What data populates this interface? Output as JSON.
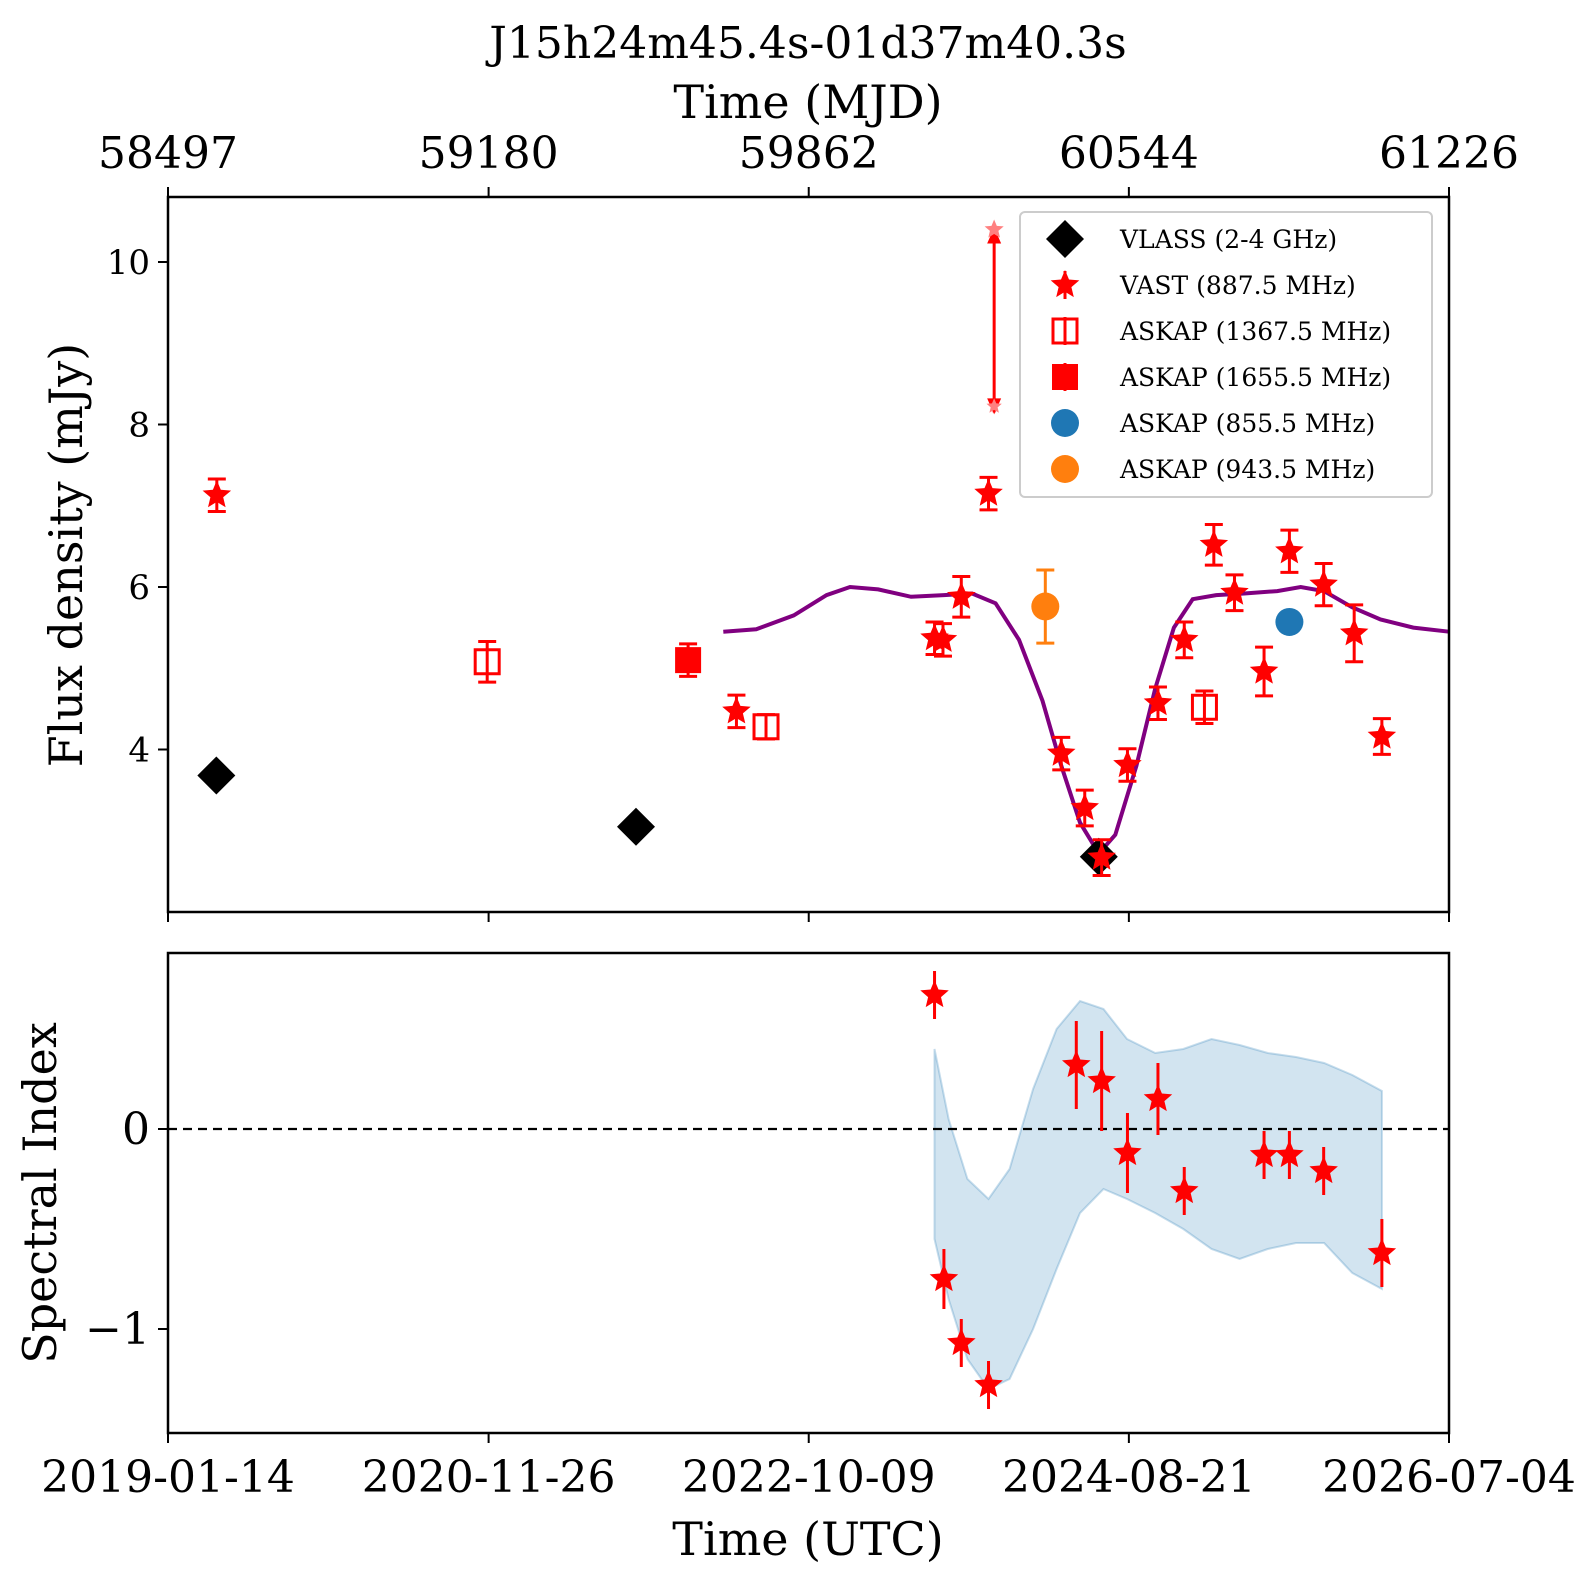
{
  "figure": {
    "title": "J15h24m45.4s-01d37m40.3s",
    "top_axis_label": "Time (MJD)",
    "bottom_axis_label": "Time (UTC)",
    "top_ylabel": "Flux density (mJy)",
    "bottom_ylabel": "Spectral Index"
  },
  "chart_data": [
    {
      "type": "scatter",
      "panel": "top",
      "title": "J15h24m45.4s-01d37m40.3s",
      "xlabel": "Time (UTC)",
      "xlabel_top": "Time (MJD)",
      "ylabel": "Flux density (mJy)",
      "xlim_mjd": [
        58497,
        61226
      ],
      "ylim": [
        2.0,
        10.8
      ],
      "x_ticks_mjd": [
        58497,
        59180,
        59862,
        60544,
        61226
      ],
      "x_tick_labels_mjd": [
        "58497",
        "59180",
        "59862",
        "60544",
        "61226"
      ],
      "y_ticks": [
        4,
        6,
        8,
        10
      ],
      "y_tick_labels": [
        "4",
        "6",
        "8",
        "10"
      ],
      "legend_position": "top-right",
      "legend": [
        {
          "label": "VLASS (2-4 GHz)",
          "marker": "diamond",
          "color": "#000000"
        },
        {
          "label": "VAST (887.5 MHz)",
          "marker": "star",
          "color": "#ff0000"
        },
        {
          "label": "ASKAP (1367.5 MHz)",
          "marker": "open-square",
          "color": "#ff0000"
        },
        {
          "label": "ASKAP (1655.5 MHz)",
          "marker": "square",
          "color": "#ff0000"
        },
        {
          "label": "ASKAP (855.5 MHz)",
          "marker": "circle",
          "color": "#1f77b4"
        },
        {
          "label": "ASKAP (943.5 MHz)",
          "marker": "circle",
          "color": "#ff7f0e"
        }
      ],
      "series": [
        {
          "name": "VLASS (2-4 GHz)",
          "marker": "diamond",
          "color": "#000000",
          "points": [
            [
              58600,
              3.68,
              0.06
            ],
            [
              59494,
              3.05,
              0.06
            ],
            [
              60480,
              2.68,
              0.06
            ]
          ]
        },
        {
          "name": "VAST (887.5 MHz)",
          "marker": "star",
          "color": "#ff0000",
          "points": [
            [
              58601,
              7.13,
              0.2
            ],
            [
              59708,
              4.47,
              0.2
            ],
            [
              60130,
              5.37,
              0.2
            ],
            [
              60148,
              5.35,
              0.2
            ],
            [
              60187,
              5.88,
              0.25
            ],
            [
              60245,
              7.15,
              0.2
            ],
            [
              60400,
              3.95,
              0.2
            ],
            [
              60450,
              3.28,
              0.22
            ],
            [
              60486,
              2.67,
              0.22
            ],
            [
              60541,
              3.81,
              0.2
            ],
            [
              60606,
              4.57,
              0.2
            ],
            [
              60662,
              5.35,
              0.22
            ],
            [
              60725,
              6.52,
              0.25
            ],
            [
              60769,
              5.93,
              0.22
            ],
            [
              60832,
              4.96,
              0.3
            ],
            [
              60886,
              6.44,
              0.26
            ],
            [
              60959,
              6.03,
              0.26
            ],
            [
              61024,
              5.43,
              0.35
            ],
            [
              61083,
              4.16,
              0.22
            ]
          ]
        },
        {
          "name": "VAST (887.5 MHz) upper limit",
          "marker": "arrow",
          "color": "#ff0000",
          "points": [
            [
              60257,
              10.4,
              8.15
            ]
          ]
        },
        {
          "name": "ASKAP (1367.5 MHz)",
          "marker": "open-square",
          "color": "#ff0000",
          "points": [
            [
              59177,
              5.08,
              0.25
            ],
            [
              59771,
              4.28,
              0.15
            ],
            [
              60705,
              4.52,
              0.2
            ]
          ]
        },
        {
          "name": "ASKAP (1655.5 MHz)",
          "marker": "square",
          "color": "#ff0000",
          "points": [
            [
              59605,
              5.1,
              0.2
            ]
          ]
        },
        {
          "name": "ASKAP (855.5 MHz)",
          "marker": "circle",
          "color": "#1f77b4",
          "points": [
            [
              60886,
              5.57,
              0.05
            ]
          ]
        },
        {
          "name": "ASKAP (943.5 MHz)",
          "marker": "circle",
          "color": "#ff7f0e",
          "points": [
            [
              60366,
              5.76,
              0.45
            ]
          ]
        },
        {
          "name": "model",
          "marker": "line",
          "color": "#800080",
          "points": [
            [
              59680,
              5.45
            ],
            [
              59750,
              5.48
            ],
            [
              59830,
              5.65
            ],
            [
              59900,
              5.9
            ],
            [
              59950,
              6.0
            ],
            [
              60010,
              5.97
            ],
            [
              60080,
              5.88
            ],
            [
              60150,
              5.9
            ],
            [
              60210,
              5.92
            ],
            [
              60260,
              5.8
            ],
            [
              60310,
              5.35
            ],
            [
              60360,
              4.6
            ],
            [
              60400,
              3.8
            ],
            [
              60440,
              3.1
            ],
            [
              60480,
              2.72
            ],
            [
              60515,
              2.95
            ],
            [
              60560,
              3.8
            ],
            [
              60600,
              4.75
            ],
            [
              60640,
              5.5
            ],
            [
              60680,
              5.85
            ],
            [
              60730,
              5.9
            ],
            [
              60790,
              5.92
            ],
            [
              60860,
              5.95
            ],
            [
              60910,
              6.0
            ],
            [
              60960,
              5.95
            ],
            [
              61020,
              5.75
            ],
            [
              61080,
              5.6
            ],
            [
              61150,
              5.5
            ],
            [
              61226,
              5.45
            ]
          ]
        }
      ]
    },
    {
      "type": "scatter",
      "panel": "bottom",
      "xlabel": "Time (UTC)",
      "ylabel": "Spectral Index",
      "xlim_mjd": [
        58497,
        61226
      ],
      "ylim": [
        -1.52,
        0.88
      ],
      "x_ticks_mjd": [
        58497,
        59180,
        59862,
        60544,
        61226
      ],
      "x_tick_labels_utc": [
        "2019-01-14",
        "2020-11-26",
        "2022-10-09",
        "2024-08-21",
        "2026-07-04"
      ],
      "y_ticks": [
        0,
        -1
      ],
      "y_tick_labels": [
        "0",
        "−1"
      ],
      "reference_line": 0,
      "series": [
        {
          "name": "spectral index",
          "marker": "star",
          "color": "#ff0000",
          "points": [
            [
              60130,
              0.67,
              0.12
            ],
            [
              60150,
              -0.75,
              0.15
            ],
            [
              60187,
              -1.07,
              0.12
            ],
            [
              60245,
              -1.28,
              0.12
            ],
            [
              60432,
              0.32,
              0.22
            ],
            [
              60486,
              0.24,
              0.25
            ],
            [
              60541,
              -0.12,
              0.2
            ],
            [
              60606,
              0.15,
              0.18
            ],
            [
              60662,
              -0.31,
              0.12
            ],
            [
              60832,
              -0.13,
              0.12
            ],
            [
              60886,
              -0.13,
              0.12
            ],
            [
              60959,
              -0.21,
              0.12
            ],
            [
              61083,
              -0.62,
              0.17
            ]
          ]
        },
        {
          "name": "band",
          "marker": "fill",
          "color": "#1f77b4",
          "upper": [
            [
              60130,
              0.4
            ],
            [
              60160,
              0.05
            ],
            [
              60200,
              -0.25
            ],
            [
              60245,
              -0.35
            ],
            [
              60290,
              -0.2
            ],
            [
              60340,
              0.2
            ],
            [
              60390,
              0.5
            ],
            [
              60440,
              0.64
            ],
            [
              60490,
              0.6
            ],
            [
              60540,
              0.45
            ],
            [
              60600,
              0.38
            ],
            [
              60660,
              0.4
            ],
            [
              60720,
              0.45
            ],
            [
              60780,
              0.42
            ],
            [
              60840,
              0.38
            ],
            [
              60900,
              0.36
            ],
            [
              60960,
              0.33
            ],
            [
              61020,
              0.27
            ],
            [
              61083,
              0.19
            ]
          ],
          "lower": [
            [
              60130,
              -0.55
            ],
            [
              60160,
              -0.85
            ],
            [
              60200,
              -1.15
            ],
            [
              60245,
              -1.3
            ],
            [
              60290,
              -1.25
            ],
            [
              60340,
              -1.0
            ],
            [
              60390,
              -0.7
            ],
            [
              60440,
              -0.42
            ],
            [
              60490,
              -0.3
            ],
            [
              60540,
              -0.35
            ],
            [
              60600,
              -0.42
            ],
            [
              60660,
              -0.5
            ],
            [
              60720,
              -0.6
            ],
            [
              60780,
              -0.65
            ],
            [
              60840,
              -0.6
            ],
            [
              60900,
              -0.57
            ],
            [
              60960,
              -0.57
            ],
            [
              61020,
              -0.72
            ],
            [
              61083,
              -0.8
            ]
          ]
        }
      ]
    }
  ]
}
